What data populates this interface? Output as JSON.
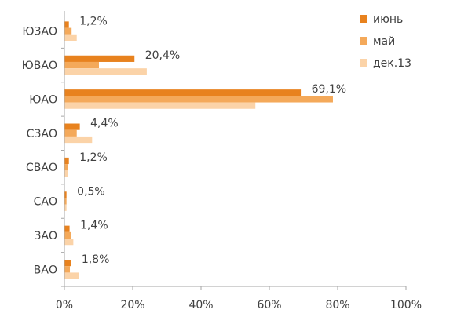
{
  "chart_data": {
    "type": "bar",
    "orientation": "horizontal",
    "categories": [
      "ЮЗАО",
      "ЮВАО",
      "ЮАО",
      "СЗАО",
      "СВАО",
      "САО",
      "ЗАО",
      "ВАО"
    ],
    "series": [
      {
        "name": "июнь",
        "color": "#e8821e",
        "values": [
          1.2,
          20.4,
          69.1,
          4.4,
          1.2,
          0.5,
          1.4,
          1.8
        ]
      },
      {
        "name": "май",
        "color": "#f4a95a",
        "values": [
          2.0,
          10.0,
          78.5,
          3.5,
          1.0,
          0.5,
          1.8,
          1.5
        ]
      },
      {
        "name": "дек.13",
        "color": "#fbd3a8",
        "values": [
          3.5,
          24.0,
          55.8,
          8.0,
          1.0,
          0.5,
          2.5,
          4.2
        ]
      }
    ],
    "data_labels": [
      "1,2%",
      "20,4%",
      "69,1%",
      "4,4%",
      "1,2%",
      "0,5%",
      "1,4%",
      "1,8%"
    ],
    "x_ticks": [
      "0%",
      "20%",
      "40%",
      "60%",
      "80%",
      "100%"
    ],
    "xlim": [
      0,
      100
    ],
    "legend_position": "top-right",
    "grid": false
  }
}
